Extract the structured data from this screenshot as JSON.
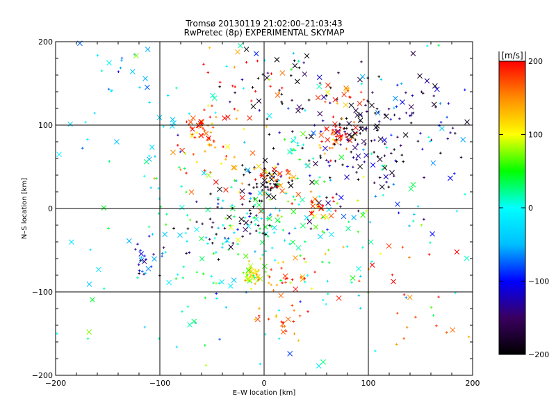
{
  "chart_data": {
    "type": "scatter",
    "title": "Tromsø 20130119 21:02:00–21:03:43",
    "subtitle": "RwPretec (8p) EXPERIMENTAL SKYMAP",
    "xlabel": "E–W location [km]",
    "ylabel": "N–S location [km]",
    "xlim": [
      -200,
      200
    ],
    "ylim": [
      -200,
      200
    ],
    "x_ticks": [
      -200,
      -100,
      0,
      100,
      200
    ],
    "y_ticks": [
      -200,
      -100,
      0,
      100,
      200
    ],
    "grid_lines_x": [
      -100,
      0,
      100
    ],
    "grid_lines_y": [
      -100,
      0,
      100
    ],
    "colorbar": {
      "label": "[m/s]",
      "range": [
        -200,
        200
      ],
      "ticks": [
        200,
        100,
        0,
        -100,
        -200
      ],
      "colors": [
        "#000000",
        "#3a0060",
        "#0000ff",
        "#00bfff",
        "#00ffff",
        "#00ff00",
        "#ffff00",
        "#ff8c00",
        "#ff0000"
      ]
    },
    "point_markers": [
      "+",
      "x"
    ],
    "clusters": [
      {
        "x": -60,
        "y": 95,
        "spread": 8,
        "n": 30,
        "velocity": 190
      },
      {
        "x": -55,
        "y": 80,
        "spread": 6,
        "n": 12,
        "velocity": 170
      },
      {
        "x": 70,
        "y": 90,
        "spread": 8,
        "n": 35,
        "velocity": 195
      },
      {
        "x": 65,
        "y": 75,
        "spread": 6,
        "n": 12,
        "velocity": 175
      },
      {
        "x": 20,
        "y": 145,
        "spread": 30,
        "n": 50,
        "velocity": -190
      },
      {
        "x": 90,
        "y": 85,
        "spread": 25,
        "n": 70,
        "velocity": -195
      },
      {
        "x": 140,
        "y": 120,
        "spread": 30,
        "n": 60,
        "velocity": -150
      },
      {
        "x": 70,
        "y": 130,
        "spread": 12,
        "n": 18,
        "velocity": 170
      },
      {
        "x": 0,
        "y": 30,
        "spread": 12,
        "n": 45,
        "velocity": -195
      },
      {
        "x": 5,
        "y": 40,
        "spread": 10,
        "n": 20,
        "velocity": 140
      },
      {
        "x": 20,
        "y": 25,
        "spread": 15,
        "n": 25,
        "velocity": 180
      },
      {
        "x": 10,
        "y": 0,
        "spread": 15,
        "n": 30,
        "velocity": 20
      },
      {
        "x": 50,
        "y": 0,
        "spread": 8,
        "n": 20,
        "velocity": 180
      },
      {
        "x": 30,
        "y": 75,
        "spread": 8,
        "n": 12,
        "velocity": 50
      },
      {
        "x": -10,
        "y": -80,
        "spread": 6,
        "n": 40,
        "velocity": 110
      },
      {
        "x": 20,
        "y": -85,
        "spread": 12,
        "n": 25,
        "velocity": 175
      },
      {
        "x": -110,
        "y": -60,
        "spread": 10,
        "n": 25,
        "velocity": -110
      },
      {
        "x": -45,
        "y": -50,
        "spread": 30,
        "n": 60,
        "velocity": 0
      },
      {
        "x": -60,
        "y": 50,
        "spread": 25,
        "n": 30,
        "velocity": 150
      },
      {
        "x": 20,
        "y": -140,
        "spread": 15,
        "n": 20,
        "velocity": 180
      },
      {
        "x": 130,
        "y": -100,
        "spread": 40,
        "n": 25,
        "velocity": 190
      },
      {
        "x": -20,
        "y": 140,
        "spread": 30,
        "n": 30,
        "velocity": 170
      },
      {
        "x": -140,
        "y": 140,
        "spread": 30,
        "n": 30,
        "velocity": -60
      },
      {
        "x": 100,
        "y": 50,
        "spread": 40,
        "n": 60,
        "velocity": -130
      },
      {
        "x": -30,
        "y": -20,
        "spread": 25,
        "n": 50,
        "velocity": -180
      },
      {
        "x": 60,
        "y": -40,
        "spread": 30,
        "n": 35,
        "velocity": 50
      },
      {
        "x": 0,
        "y": 0,
        "spread": 120,
        "n": 200,
        "velocity": 0
      }
    ]
  }
}
